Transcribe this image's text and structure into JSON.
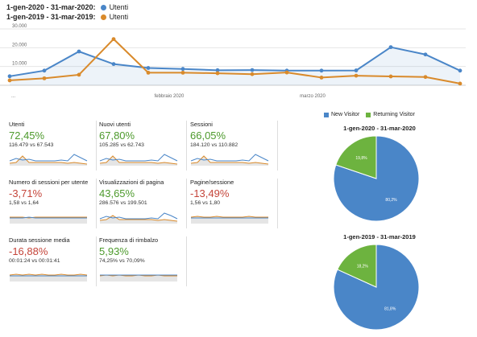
{
  "legend": {
    "current": {
      "range": "1-gen-2020 - 31-mar-2020:",
      "series": "Utenti",
      "color": "#4a86c8"
    },
    "previous": {
      "range": "1-gen-2019 - 31-mar-2019:",
      "series": "Utenti",
      "color": "#d98a2b"
    }
  },
  "chart_data": [
    {
      "type": "line",
      "title": "",
      "x_labels": {
        "start": "...",
        "mid1": "febbraio 2020",
        "mid2": "marzo 2020"
      },
      "y_ticks": [
        "30.000",
        "20.000",
        "10.000"
      ],
      "ylim": [
        0,
        30000
      ],
      "grid": true,
      "x": [
        "2020-01-01",
        "2020-01-08",
        "2020-01-15",
        "2020-01-22",
        "2020-01-29",
        "2020-02-05",
        "2020-02-12",
        "2020-02-19",
        "2020-02-26",
        "2020-03-04",
        "2020-03-11",
        "2020-03-18",
        "2020-03-25",
        "2020-03-31"
      ],
      "series": [
        {
          "name": "1-gen-2020 - 31-mar-2020: Utenti",
          "color": "#4a86c8",
          "area": true,
          "values": [
            4800,
            7800,
            18000,
            11300,
            9200,
            8700,
            8000,
            8100,
            7800,
            7800,
            7900,
            20300,
            16400,
            7800
          ]
        },
        {
          "name": "1-gen-2019 - 31-mar-2019: Utenti",
          "color": "#d98a2b",
          "area": false,
          "values": [
            2600,
            3700,
            5600,
            24600,
            6700,
            6700,
            6400,
            5900,
            6800,
            4100,
            5100,
            4700,
            4400,
            900
          ]
        }
      ]
    },
    {
      "type": "pie",
      "title": "1-gen-2020 - 31-mar-2020",
      "labels": [
        "New Visitor",
        "Returning Visitor"
      ],
      "values": [
        80.2,
        19.8
      ],
      "value_labels": [
        "80,2%",
        "19,8%"
      ],
      "colors": [
        "#4a86c8",
        "#6db33f"
      ]
    },
    {
      "type": "pie",
      "title": "1-gen-2019 - 31-mar-2019",
      "labels": [
        "New Visitor",
        "Returning Visitor"
      ],
      "values": [
        81.8,
        18.2
      ],
      "value_labels": [
        "81,8%",
        "18,2%"
      ],
      "colors": [
        "#4a86c8",
        "#6db33f"
      ]
    }
  ],
  "pie_legend": {
    "new": "New Visitor",
    "returning": "Returning Visitor",
    "new_color": "#4a86c8",
    "returning_color": "#6db33f"
  },
  "metrics": [
    {
      "title": "Utenti",
      "pct": "72,45%",
      "cmp": "116.479 vs 67.543",
      "trend": "pos",
      "a": [
        5,
        8,
        6,
        7,
        5,
        5,
        5,
        5,
        6,
        5,
        13,
        9,
        5
      ],
      "b": [
        2,
        3,
        11,
        3,
        3,
        3,
        3,
        3,
        3,
        2,
        3,
        2,
        1
      ]
    },
    {
      "title": "Nuovi utenti",
      "pct": "67,80%",
      "cmp": "105.285 vs 62.743",
      "trend": "pos",
      "a": [
        5,
        8,
        6,
        7,
        5,
        5,
        5,
        5,
        6,
        5,
        13,
        9,
        5
      ],
      "b": [
        2,
        3,
        11,
        3,
        3,
        3,
        3,
        3,
        3,
        2,
        3,
        2,
        1
      ]
    },
    {
      "title": "Sessioni",
      "pct": "66,05%",
      "cmp": "184.120 vs 110.882",
      "trend": "pos",
      "a": [
        5,
        8,
        6,
        7,
        5,
        5,
        5,
        5,
        6,
        5,
        13,
        9,
        5
      ],
      "b": [
        2,
        3,
        11,
        3,
        3,
        3,
        3,
        3,
        3,
        2,
        3,
        2,
        1
      ]
    },
    {
      "title": "Numero di sessioni per utente",
      "pct": "-3,71%",
      "cmp": "1,58 vs 1,64",
      "trend": "neg",
      "a": [
        6,
        6,
        6,
        7,
        6,
        6,
        6,
        6,
        6,
        6,
        6,
        6,
        6
      ],
      "b": [
        7,
        7,
        7,
        6,
        7,
        7,
        7,
        7,
        7,
        7,
        7,
        7,
        7
      ]
    },
    {
      "title": "Visualizzazioni di pagina",
      "pct": "43,65%",
      "cmp": "286.576 vs 199.501",
      "trend": "pos",
      "a": [
        5,
        8,
        6,
        7,
        5,
        5,
        5,
        5,
        6,
        5,
        12,
        9,
        5
      ],
      "b": [
        3,
        4,
        9,
        4,
        4,
        4,
        4,
        4,
        4,
        3,
        4,
        3,
        2
      ]
    },
    {
      "title": "Pagine/sessione",
      "pct": "-13,49%",
      "cmp": "1,56 vs 1,80",
      "trend": "neg",
      "a": [
        6,
        6,
        6,
        6,
        6,
        6,
        6,
        6,
        6,
        6,
        6,
        6,
        6
      ],
      "b": [
        7,
        8,
        7,
        7,
        8,
        7,
        7,
        7,
        7,
        8,
        7,
        7,
        7
      ]
    },
    {
      "title": "Durata sessione media",
      "pct": "-16,88%",
      "cmp": "00:01:24 vs 00:01:41",
      "trend": "neg",
      "a": [
        6,
        6,
        6,
        6,
        6,
        6,
        6,
        6,
        6,
        6,
        6,
        6,
        6
      ],
      "b": [
        7,
        8,
        7,
        8,
        7,
        8,
        7,
        7,
        8,
        7,
        7,
        8,
        7
      ]
    },
    {
      "title": "Frequenza di rimbalzo",
      "pct": "5,93%",
      "cmp": "74,25% vs 70,09%",
      "trend": "pos",
      "a": [
        7,
        7,
        7,
        7,
        7,
        7,
        7,
        7,
        7,
        7,
        7,
        7,
        7
      ],
      "b": [
        6,
        7,
        6,
        7,
        6,
        6,
        7,
        6,
        6,
        7,
        6,
        6,
        6
      ]
    }
  ]
}
